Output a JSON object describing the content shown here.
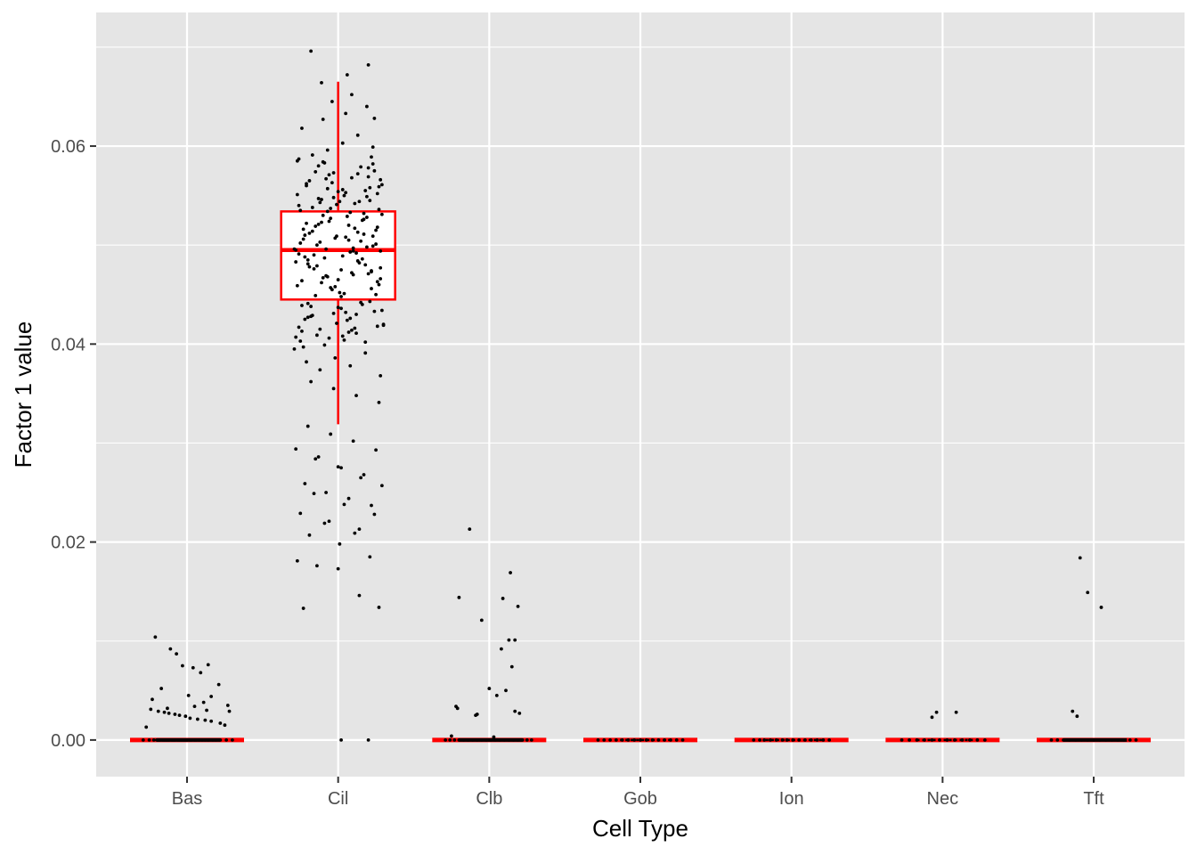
{
  "colors": {
    "panel_background": "#e5e5e5",
    "grid": "#ffffff",
    "box": "#ff0000",
    "points": "#000000",
    "tick_text": "#4d4d4d",
    "axis_title": "#000000"
  },
  "chart_data": {
    "type": "box",
    "overlay": "jittered-points",
    "title": "",
    "xlabel": "Cell Type",
    "ylabel": "Factor 1 value",
    "categories": [
      "Bas",
      "Cil",
      "Clb",
      "Gob",
      "Ion",
      "Nec",
      "Tft"
    ],
    "ylim": [
      -0.0037,
      0.0735
    ],
    "yticks": [
      0.0,
      0.02,
      0.04,
      0.06
    ],
    "ytick_labels": [
      "0.00",
      "0.02",
      "0.04",
      "0.06"
    ],
    "grid": true,
    "legend": "none",
    "boxes": [
      {
        "category": "Bas",
        "q1": 0,
        "median": 0,
        "q3": 0,
        "whisker_low": 0,
        "whisker_high": 0
      },
      {
        "category": "Cil",
        "q1": 0.0445,
        "median": 0.0495,
        "q3": 0.0534,
        "whisker_low": 0.0319,
        "whisker_high": 0.0665
      },
      {
        "category": "Clb",
        "q1": 0,
        "median": 0,
        "q3": 0,
        "whisker_low": 0,
        "whisker_high": 0
      },
      {
        "category": "Gob",
        "q1": 0,
        "median": 0,
        "q3": 0,
        "whisker_low": 0,
        "whisker_high": 0
      },
      {
        "category": "Ion",
        "q1": 0,
        "median": 0,
        "q3": 0,
        "whisker_low": 0,
        "whisker_high": 0
      },
      {
        "category": "Nec",
        "q1": 0,
        "median": 0,
        "q3": 0,
        "whisker_low": 0,
        "whisker_high": 0
      },
      {
        "category": "Tft",
        "q1": 0,
        "median": 0,
        "q3": 0,
        "whisker_low": 0,
        "whisker_high": 0
      }
    ],
    "points": {
      "Bas": {
        "offsets": [
          -0.29,
          -0.25,
          -0.22,
          -0.2,
          -0.19,
          -0.18,
          -0.16,
          -0.15,
          -0.14,
          -0.13,
          -0.12,
          -0.1,
          -0.09,
          -0.08,
          -0.06,
          -0.05,
          -0.04,
          -0.03,
          -0.02,
          -0.01,
          0.0,
          0.02,
          0.03,
          0.05,
          0.06,
          0.08,
          0.1,
          0.12,
          0.14,
          0.17,
          0.19,
          0.22,
          0.26,
          0.3,
          -0.21,
          -0.11,
          -0.07,
          -0.03,
          0.04,
          0.09,
          0.14,
          0.21,
          -0.17,
          0.01,
          0.16,
          -0.23,
          0.11,
          0.27
        ],
        "values": [
          0.0,
          0.0,
          0.0,
          0.0,
          0.0,
          0.0,
          0.0,
          0.0,
          0.0,
          0.0,
          0.0,
          0.0,
          0.0,
          0.0,
          0.0,
          0.0,
          0.0,
          0.0,
          0.0,
          0.0,
          0.0,
          0.0,
          0.0,
          0.0,
          0.0,
          0.0,
          0.0,
          0.0,
          0.0,
          0.0,
          0.0,
          0.0,
          0.0,
          0.0,
          0.0104,
          0.0092,
          0.0087,
          0.0075,
          0.0073,
          0.0068,
          0.0076,
          0.0056,
          0.0052,
          0.0045,
          0.0044,
          0.0041,
          0.0038,
          0.0035
        ]
      },
      "Bas_extra": {
        "offsets": [
          -0.24,
          -0.19,
          -0.15,
          -0.12,
          -0.08,
          -0.05,
          -0.01,
          0.02,
          0.07,
          0.12,
          0.16,
          0.22,
          0.25,
          -0.27,
          -0.13,
          0.05,
          0.13,
          0.28
        ],
        "values": [
          0.0031,
          0.0029,
          0.0028,
          0.0027,
          0.0026,
          0.0025,
          0.0024,
          0.0022,
          0.0021,
          0.002,
          0.0019,
          0.0017,
          0.0015,
          0.0013,
          0.0032,
          0.0034,
          0.003,
          0.0029
        ]
      },
      "Cil": {
        "offsets": [
          -0.28,
          -0.25,
          -0.22,
          -0.19,
          -0.16,
          -0.13,
          -0.1,
          -0.07,
          -0.04,
          -0.01,
          0.02,
          0.05,
          0.08,
          0.11,
          0.14,
          0.17,
          0.2,
          0.23,
          0.26,
          0.29,
          -0.27,
          -0.24,
          -0.21,
          -0.18,
          -0.15,
          -0.12,
          -0.09,
          -0.06,
          -0.03,
          0.0,
          0.03,
          0.06,
          0.09,
          0.12,
          0.15,
          0.18,
          0.21,
          0.24,
          0.27,
          0.3,
          -0.26,
          -0.23,
          -0.2,
          -0.17,
          -0.14,
          -0.11,
          -0.08,
          -0.05,
          -0.02,
          0.01,
          0.04,
          0.07,
          0.1,
          0.13,
          0.16,
          0.19,
          0.22,
          0.25,
          0.28,
          -0.29,
          -0.26,
          -0.21,
          -0.17,
          -0.12,
          -0.07,
          -0.02,
          0.03,
          0.08,
          0.13,
          0.18,
          0.23,
          0.28,
          -0.24,
          -0.18,
          -0.1,
          -0.03,
          0.05,
          0.12,
          0.19,
          0.27,
          -0.28,
          -0.2,
          -0.13,
          -0.05,
          0.02,
          0.1,
          0.17,
          0.25,
          -0.22,
          -0.15,
          -0.08,
          0.0,
          0.07,
          0.15,
          0.22,
          0.29,
          -0.25,
          -0.16,
          -0.06,
          0.04,
          0.14,
          0.24,
          -0.19,
          -0.09,
          0.01,
          0.11,
          0.21,
          -0.27,
          -0.14,
          0.0,
          0.14,
          0.27,
          -0.23,
          -0.11,
          0.06,
          0.2,
          -0.18,
          -0.04,
          0.09,
          0.24,
          -0.29,
          -0.12,
          0.03,
          0.17,
          0.28,
          -0.21,
          -0.07,
          0.08,
          0.22,
          -0.26,
          -0.15,
          -0.01,
          0.12,
          0.26,
          -0.2,
          -0.05,
          0.1,
          0.19,
          -0.24,
          -0.1,
          0.04,
          0.16,
          0.29,
          -0.17,
          -0.03,
          0.11,
          0.23,
          -0.28,
          -0.13,
          0.02,
          0.18,
          -0.22,
          -0.08,
          0.07,
          0.2,
          -0.25,
          -0.11,
          0.05,
          0.21,
          0.3,
          -0.16,
          -0.02,
          0.13,
          0.25,
          -0.19,
          -0.06,
          0.09,
          0.27,
          -0.27,
          -0.12,
          0.01,
          0.15,
          0.28,
          -0.23,
          -0.09,
          0.06,
          0.22,
          -0.14,
          0.0,
          0.17,
          0.26,
          -0.2,
          -0.04,
          0.12,
          0.24,
          -0.26,
          -0.1,
          0.03,
          0.19,
          -0.18,
          -0.07,
          0.08,
          0.2,
          -0.24,
          -0.13,
          0.04,
          0.14,
          0.29,
          -0.21,
          -0.01,
          0.1,
          0.23,
          -0.28,
          -0.15,
          0.02,
          0.16,
          0.27,
          -0.17,
          -0.05,
          0.11,
          0.25,
          -0.22,
          -0.08,
          0.07,
          0.18,
          -0.25,
          -0.11,
          0.05,
          0.21,
          -0.19,
          -0.03,
          0.13,
          0.26,
          -0.27,
          -0.14,
          0.0,
          0.15,
          0.28,
          -0.2,
          -0.06,
          0.09,
          0.22,
          -0.23,
          -0.09,
          0.06,
          0.17,
          -0.16,
          -0.02,
          0.12,
          0.24
        ],
        "values": [
          0.0495,
          0.0502,
          0.0488,
          0.0512,
          0.0476,
          0.0521,
          0.0467,
          0.0534,
          0.0455,
          0.0541,
          0.0448,
          0.0508,
          0.0493,
          0.0517,
          0.0482,
          0.0526,
          0.0471,
          0.0499,
          0.0463,
          0.0531,
          0.0551,
          0.0439,
          0.0562,
          0.0428,
          0.0574,
          0.0415,
          0.0583,
          0.0406,
          0.0548,
          0.0437,
          0.0556,
          0.0424,
          0.0568,
          0.0411,
          0.0579,
          0.0402,
          0.0545,
          0.0433,
          0.0559,
          0.0419,
          0.0491,
          0.0506,
          0.0485,
          0.0514,
          0.0479,
          0.0523,
          0.0469,
          0.0537,
          0.0458,
          0.0544,
          0.0451,
          0.0505,
          0.0497,
          0.0513,
          0.0486,
          0.0528,
          0.0474,
          0.0501,
          0.0466,
          0.0395,
          0.0587,
          0.0382,
          0.0591,
          0.0374,
          0.0596,
          0.0386,
          0.0603,
          0.0378,
          0.0611,
          0.0391,
          0.0599,
          0.0368,
          0.0618,
          0.0362,
          0.0627,
          0.0355,
          0.0633,
          0.0348,
          0.064,
          0.0341,
          0.0294,
          0.0317,
          0.0286,
          0.0309,
          0.0275,
          0.0302,
          0.0268,
          0.0293,
          0.0259,
          0.0284,
          0.025,
          0.0276,
          0.0244,
          0.0265,
          0.0237,
          0.0257,
          0.0229,
          0.0249,
          0.0221,
          0.0238,
          0.0213,
          0.0228,
          0.0207,
          0.0219,
          0.0198,
          0.0209,
          0.0185,
          0.0181,
          0.0176,
          0.0173,
          0.0146,
          0.0134,
          0.0133,
          0.0664,
          0.0672,
          0.0682,
          0.0696,
          0.0645,
          0.0652,
          0.0628,
          0.0496,
          0.0503,
          0.0489,
          0.0511,
          0.0477,
          0.0522,
          0.0468,
          0.0533,
          0.0456,
          0.054,
          0.0449,
          0.0509,
          0.0492,
          0.0518,
          0.0481,
          0.0527,
          0.047,
          0.0498,
          0.0464,
          0.053,
          0.055,
          0.044,
          0.0561,
          0.0429,
          0.0573,
          0.0416,
          0.0582,
          0.0407,
          0.0547,
          0.0436,
          0.0555,
          0.0425,
          0.0567,
          0.0412,
          0.0578,
          0.0403,
          0.0546,
          0.0432,
          0.0558,
          0.042,
          0.049,
          0.0507,
          0.0484,
          0.0515,
          0.0478,
          0.0524,
          0.0472,
          0.0536,
          0.0459,
          0.0543,
          0.0452,
          0.0504,
          0.0494,
          0.0516,
          0.0487,
          0.0529,
          0.0473,
          0.05,
          0.0465,
          0.0532,
          0.0552,
          0.0441,
          0.0563,
          0.043,
          0.0575,
          0.0417,
          0.0584,
          0.0408,
          0.0549,
          0.0438,
          0.0557,
          0.0426,
          0.0569,
          0.0413,
          0.058,
          0.0404,
          0.0544,
          0.0434,
          0.056,
          0.0421,
          0.0494,
          0.0509,
          0.0483,
          0.0519,
          0.0475,
          0.0525,
          0.046,
          0.0538,
          0.0457,
          0.0542,
          0.045,
          0.051,
          0.0496,
          0.052,
          0.048,
          0.0535,
          0.0462,
          0.0553,
          0.0443,
          0.0565,
          0.0431,
          0.0572,
          0.0418,
          0.0585,
          0.0409,
          0.0554,
          0.0442,
          0.0566,
          0.0427,
          0.0571,
          0.0414,
          0.0589,
          0.0397,
          0.0399
        ],
        "zeros": [
          0.02,
          0.2
        ]
      },
      "Clb": {
        "offsets": [
          -0.29,
          -0.26,
          -0.23,
          -0.2,
          -0.17,
          -0.14,
          -0.11,
          -0.08,
          -0.05,
          -0.02,
          0.01,
          0.04,
          0.07,
          0.1,
          0.13,
          0.16,
          0.19,
          0.22,
          0.25,
          0.28,
          -0.13,
          -0.2,
          -0.05,
          0.0,
          0.05,
          0.09,
          0.14,
          0.17,
          0.19,
          0.15,
          0.13,
          -0.22,
          -0.21,
          -0.09,
          -0.08,
          0.11,
          0.17,
          0.2,
          0.08,
          -0.25,
          0.03
        ],
        "values": [
          0.0,
          0.0,
          0.0,
          0.0,
          0.0,
          0.0,
          0.0,
          0.0,
          0.0,
          0.0,
          0.0,
          0.0,
          0.0,
          0.0,
          0.0,
          0.0,
          0.0,
          0.0,
          0.0,
          0.0,
          0.0213,
          0.0144,
          0.0121,
          0.0052,
          0.0045,
          0.0143,
          0.0169,
          0.0101,
          0.0135,
          0.0074,
          0.0101,
          0.0034,
          0.0032,
          0.0025,
          0.0026,
          0.005,
          0.0029,
          0.0027,
          0.0092,
          0.0004,
          0.0003
        ]
      },
      "Gob": {
        "offsets": [
          -0.28,
          -0.24,
          -0.2,
          -0.16,
          -0.12,
          -0.08,
          -0.04,
          0.0,
          0.04,
          0.08,
          0.12,
          0.16,
          0.2,
          0.24,
          0.28
        ],
        "values": [
          0.0,
          0.0,
          0.0,
          0.0,
          0.0,
          0.0,
          0.0,
          0.0,
          0.0,
          0.0,
          0.0,
          0.0,
          0.0,
          0.0,
          0.0
        ]
      },
      "Ion": {
        "offsets": [
          -0.25,
          -0.21,
          -0.18,
          -0.14,
          -0.1,
          -0.06,
          -0.03,
          0.01,
          0.05,
          0.09,
          0.13,
          0.17,
          0.21,
          0.25
        ],
        "values": [
          0.0,
          0.0,
          0.0,
          0.0,
          0.0,
          0.0,
          0.0,
          0.0,
          0.0,
          0.0,
          0.0,
          0.0,
          0.0,
          0.0
        ]
      },
      "Nec": {
        "offsets": [
          -0.27,
          -0.22,
          -0.17,
          -0.12,
          -0.07,
          -0.02,
          0.03,
          0.08,
          0.13,
          0.18,
          0.23,
          0.28,
          -0.07,
          -0.04,
          0.09
        ],
        "values": [
          0.0,
          0.0,
          0.0,
          0.0,
          0.0,
          0.0,
          0.0,
          0.0,
          0.0,
          0.0,
          0.0,
          0.0,
          0.0023,
          0.0028,
          0.0028
        ]
      },
      "Tft": {
        "offsets": [
          -0.28,
          -0.24,
          -0.2,
          -0.16,
          -0.12,
          -0.08,
          -0.04,
          0.0,
          0.04,
          0.08,
          0.12,
          0.16,
          0.2,
          0.24,
          0.28,
          -0.09,
          -0.04,
          0.05,
          -0.14,
          -0.11
        ],
        "values": [
          0.0,
          0.0,
          0.0,
          0.0,
          0.0,
          0.0,
          0.0,
          0.0,
          0.0,
          0.0,
          0.0,
          0.0,
          0.0,
          0.0,
          0.0,
          0.0184,
          0.0149,
          0.0134,
          0.0029,
          0.0024
        ]
      }
    }
  }
}
